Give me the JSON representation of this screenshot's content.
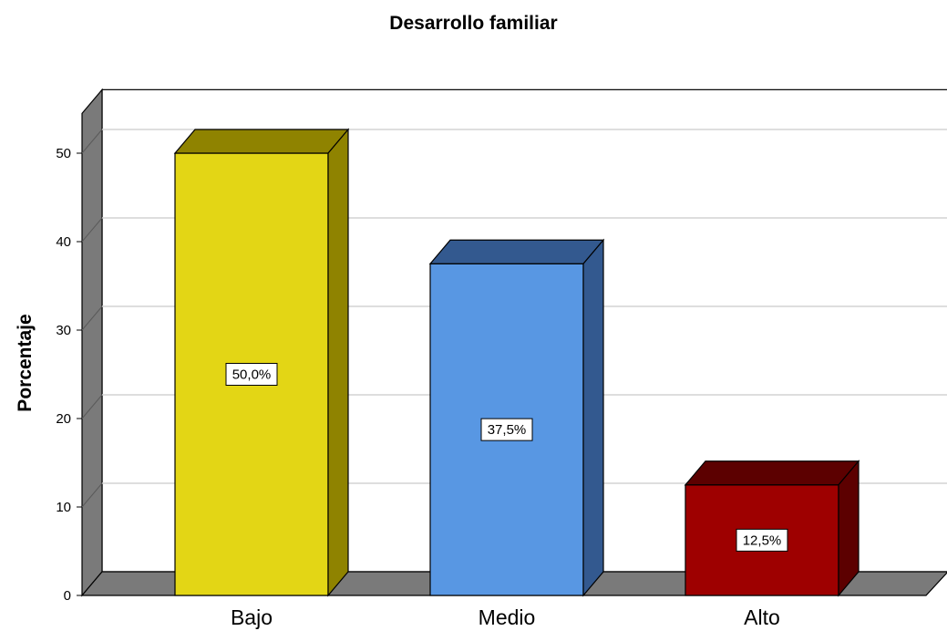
{
  "chart_data": {
    "type": "bar",
    "title": "Desarrollo familiar",
    "xlabel": "",
    "ylabel": "Porcentaje",
    "categories": [
      "Bajo",
      "Medio",
      "Alto"
    ],
    "values": [
      50.0,
      37.5,
      12.5
    ],
    "data_labels": [
      "50,0%",
      "37,5%",
      "12,5%"
    ],
    "ylim": [
      0,
      52
    ],
    "yticks": [
      0,
      10,
      20,
      30,
      40,
      50
    ],
    "ytick_labels": [
      "0",
      "10",
      "20",
      "30",
      "40",
      "50"
    ],
    "grid": true,
    "style": "3d",
    "colors": {
      "front": [
        "#e3d615",
        "#5897e3",
        "#9e0000"
      ],
      "side": [
        "#8f8300",
        "#33598f",
        "#5c0000"
      ],
      "top": [
        "#8f8300",
        "#33598f",
        "#5c0000"
      ],
      "wall": "#7a7a7a",
      "gridline": "#d3d3d3"
    }
  }
}
